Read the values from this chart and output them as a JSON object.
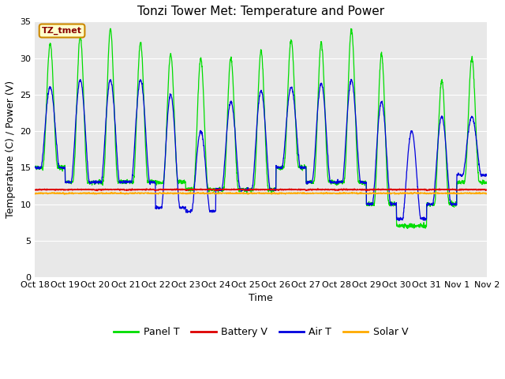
{
  "title": "Tonzi Tower Met: Temperature and Power",
  "ylabel": "Temperature (C) / Power (V)",
  "xlabel": "Time",
  "ylim": [
    0,
    35
  ],
  "yticks": [
    0,
    5,
    10,
    15,
    20,
    25,
    30,
    35
  ],
  "xtick_labels": [
    "Oct 18",
    "Oct 19",
    "Oct 20",
    "Oct 21",
    "Oct 22",
    "Oct 23",
    "Oct 24",
    "Oct 25",
    "Oct 26",
    "Oct 27",
    "Oct 28",
    "Oct 29",
    "Oct 30",
    "Oct 31",
    "Nov 1",
    "Nov 2"
  ],
  "legend_labels": [
    "Panel T",
    "Battery V",
    "Air T",
    "Solar V"
  ],
  "legend_colors": [
    "#00dd00",
    "#dd0000",
    "#0000dd",
    "#ffaa00"
  ],
  "annotation_text": "TZ_tmet",
  "annotation_color": "#880000",
  "annotation_bg": "#ffffcc",
  "annotation_border": "#cc8800",
  "plot_bg_color": "#e8e8e8",
  "grid_color": "#ffffff",
  "title_fontsize": 11,
  "axis_fontsize": 9,
  "tick_fontsize": 8,
  "total_days": 15,
  "panel_peaks": [
    32,
    33,
    34,
    32,
    30.5,
    30,
    30,
    31,
    32.5,
    32,
    34,
    30.5,
    7,
    27,
    30
  ],
  "panel_mins": [
    15,
    13,
    13,
    13,
    13,
    12,
    12,
    12,
    15,
    13,
    13,
    10,
    7,
    10,
    13
  ],
  "air_peaks": [
    26,
    27,
    27,
    27,
    25,
    20,
    24,
    25.5,
    26,
    26.5,
    27,
    24,
    20,
    22,
    22
  ],
  "air_mins": [
    15,
    13,
    13,
    13,
    9.5,
    9,
    12,
    12,
    15,
    13,
    13,
    10,
    8,
    10,
    14
  ],
  "battery_base": 12.0,
  "solar_base": 11.5
}
